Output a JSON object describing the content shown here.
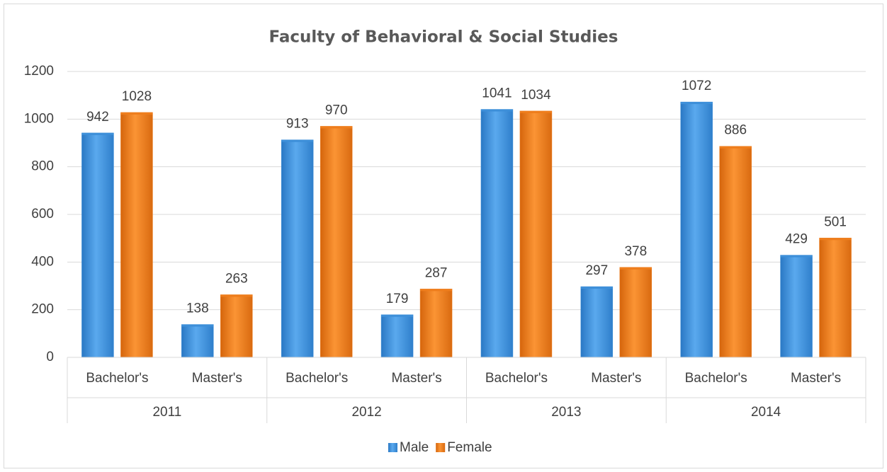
{
  "chart_data": {
    "type": "bar",
    "title": "Faculty of Behavioral & Social Studies",
    "categories": [
      "Bachelor's",
      "Master's",
      "Bachelor's",
      "Master's",
      "Bachelor's",
      "Master's",
      "Bachelor's",
      "Master's"
    ],
    "groups": [
      "2011",
      "2012",
      "2013",
      "2014"
    ],
    "series": [
      {
        "name": "Male",
        "color": "#3d8fd9",
        "values": [
          942,
          138,
          913,
          179,
          1041,
          297,
          1072,
          429
        ]
      },
      {
        "name": "Female",
        "color": "#ee7d1c",
        "values": [
          1028,
          263,
          970,
          287,
          1034,
          378,
          886,
          501
        ]
      }
    ],
    "ylim": [
      0,
      1200
    ],
    "yticks": [
      0,
      200,
      400,
      600,
      800,
      1000,
      1200
    ],
    "grid": true,
    "legend": "bottom"
  }
}
